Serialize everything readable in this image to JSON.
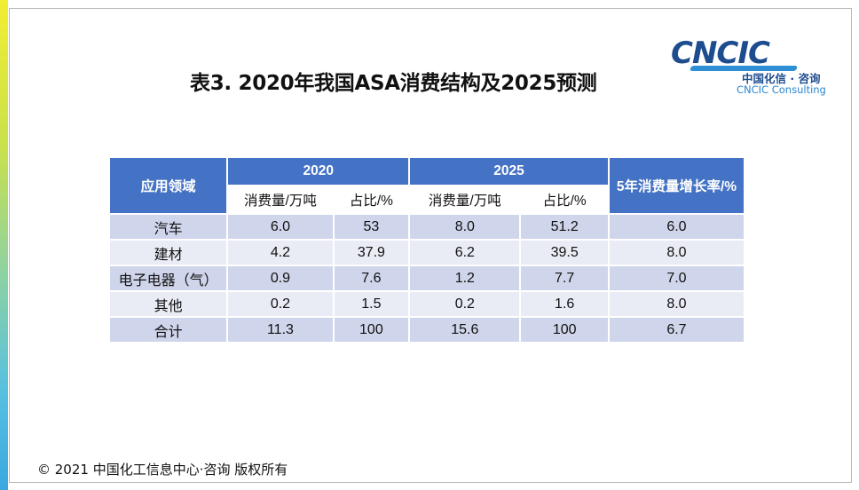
{
  "title": "表3. 2020年我国ASA消费结构及2025预测",
  "logo": {
    "mark": "CNCIC",
    "cn": "中国化信 · 咨询",
    "en": "CNCIC Consulting"
  },
  "table": {
    "header": {
      "field": "应用领域",
      "year1": "2020",
      "year2": "2025",
      "growth": "5年消费量增长率/%"
    },
    "subheader": {
      "y1_amount": "消费量/万吨",
      "y1_share": "占比/%",
      "y2_amount": "消费量/万吨",
      "y2_share": "占比/%"
    },
    "rows": [
      {
        "field": "汽车",
        "y1_amount": "6.0",
        "y1_share": "53",
        "y2_amount": "8.0",
        "y2_share": "51.2",
        "growth": "6.0"
      },
      {
        "field": "建材",
        "y1_amount": "4.2",
        "y1_share": "37.9",
        "y2_amount": "6.2",
        "y2_share": "39.5",
        "growth": "8.0"
      },
      {
        "field": "电子电器（气）",
        "y1_amount": "0.9",
        "y1_share": "7.6",
        "y2_amount": "1.2",
        "y2_share": "7.7",
        "growth": "7.0"
      },
      {
        "field": "其他",
        "y1_amount": "0.2",
        "y1_share": "1.5",
        "y2_amount": "0.2",
        "y2_share": "1.6",
        "growth": "8.0"
      },
      {
        "field": "合计",
        "y1_amount": "11.3",
        "y1_share": "100",
        "y2_amount": "15.6",
        "y2_share": "100",
        "growth": "6.7"
      }
    ]
  },
  "footer": "© 2021 中国化工信息中心·咨询 版权所有",
  "colors": {
    "header_bg": "#4472c4",
    "row_dark": "#cfd5ea",
    "row_light": "#e9ebf5",
    "logo_blue": "#1d4c8f"
  }
}
